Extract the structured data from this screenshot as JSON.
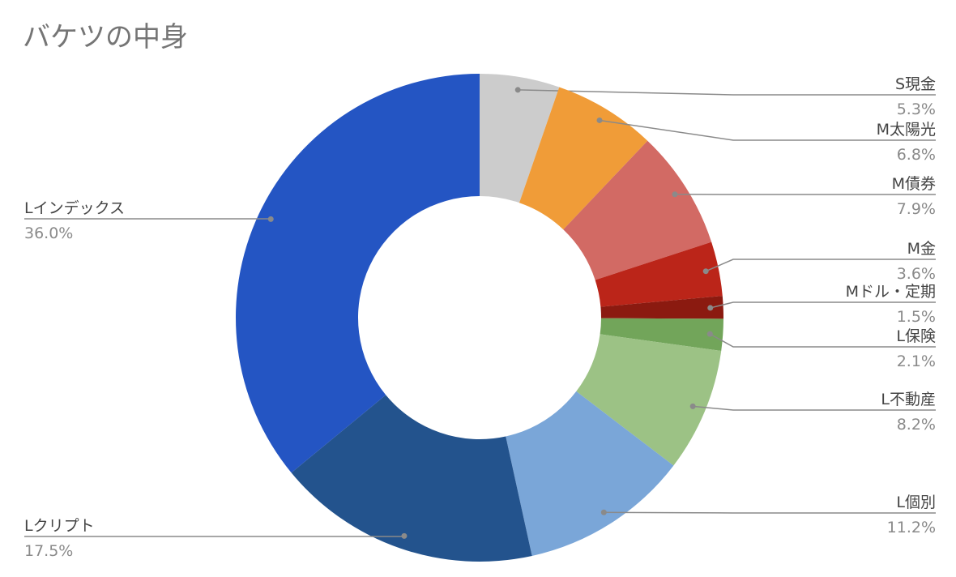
{
  "chart_data": {
    "type": "donut",
    "title": "バケツの中身",
    "categories": [
      "S現金",
      "M太陽光",
      "M債券",
      "M金",
      "Mドル・定期",
      "L保険",
      "L不動産",
      "L個別",
      "Lクリプト",
      "Lインデックス"
    ],
    "values": [
      5.3,
      6.8,
      7.9,
      3.6,
      1.5,
      2.1,
      8.2,
      11.2,
      17.5,
      36.0
    ],
    "value_labels": [
      "5.3%",
      "6.8%",
      "7.9%",
      "3.6%",
      "1.5%",
      "2.1%",
      "8.2%",
      "11.2%",
      "17.5%",
      "36.0%"
    ],
    "colors": [
      "#cccccc",
      "#f09c38",
      "#d26a64",
      "#bb2519",
      "#8b1a10",
      "#72a55a",
      "#9cc285",
      "#7aa6d8",
      "#23538d",
      "#2455c3"
    ]
  }
}
